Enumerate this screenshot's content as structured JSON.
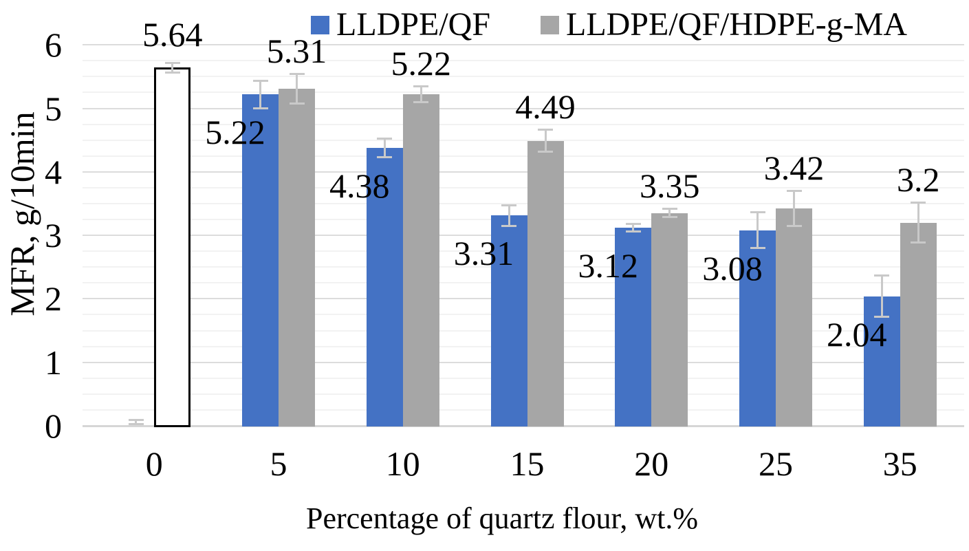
{
  "chart_data": {
    "type": "bar",
    "title": "",
    "xlabel": "Percentage of quartz flour, wt.%",
    "ylabel": "MFR, g/10min",
    "categories": [
      "0",
      "5",
      "10",
      "15",
      "20",
      "25",
      "35"
    ],
    "ylim": [
      0,
      6.5
    ],
    "yticks": [
      "0",
      "1",
      "2",
      "3",
      "4",
      "5",
      "6"
    ],
    "minor_grid_step": 0.25,
    "major_grid_step": 1,
    "grid": true,
    "legend_position": "top-center",
    "series": [
      {
        "name": "LLDPE/QF",
        "color": "#4472C4",
        "values": [
          null,
          5.22,
          4.38,
          3.31,
          3.12,
          3.08,
          2.04
        ],
        "errors": [
          null,
          0.22,
          0.15,
          0.17,
          0.06,
          0.29,
          0.33
        ],
        "labels": [
          null,
          "5.22",
          "4.38",
          "3.31",
          "3.12",
          "3.08",
          "2.04"
        ]
      },
      {
        "name": "LLDPE/QF/HDPE-g-MA",
        "color": "#A6A6A6",
        "values": [
          null,
          5.31,
          5.22,
          4.49,
          3.35,
          3.42,
          3.2
        ],
        "errors": [
          null,
          0.24,
          0.13,
          0.18,
          0.07,
          0.28,
          0.32
        ],
        "labels": [
          null,
          "5.31",
          "5.22",
          "4.49",
          "3.35",
          "3.42",
          "3.2"
        ]
      }
    ],
    "neat_lldpe_bar": {
      "category": "0",
      "value": 5.64,
      "error": 0.08,
      "label": "5.64",
      "fill": "#FFFFFF",
      "border_color": "#000000"
    },
    "zero_error_marker": {
      "category": "0",
      "series": "LLDPE/QF",
      "center": 0.06,
      "error": 0.04
    },
    "colors": {
      "error_bar": "#C9C9C9",
      "grid_minor": "#F2F2F2",
      "grid_major": "#DCDCDC",
      "axis_line": "#D6D6D6",
      "text": "#000000"
    }
  }
}
